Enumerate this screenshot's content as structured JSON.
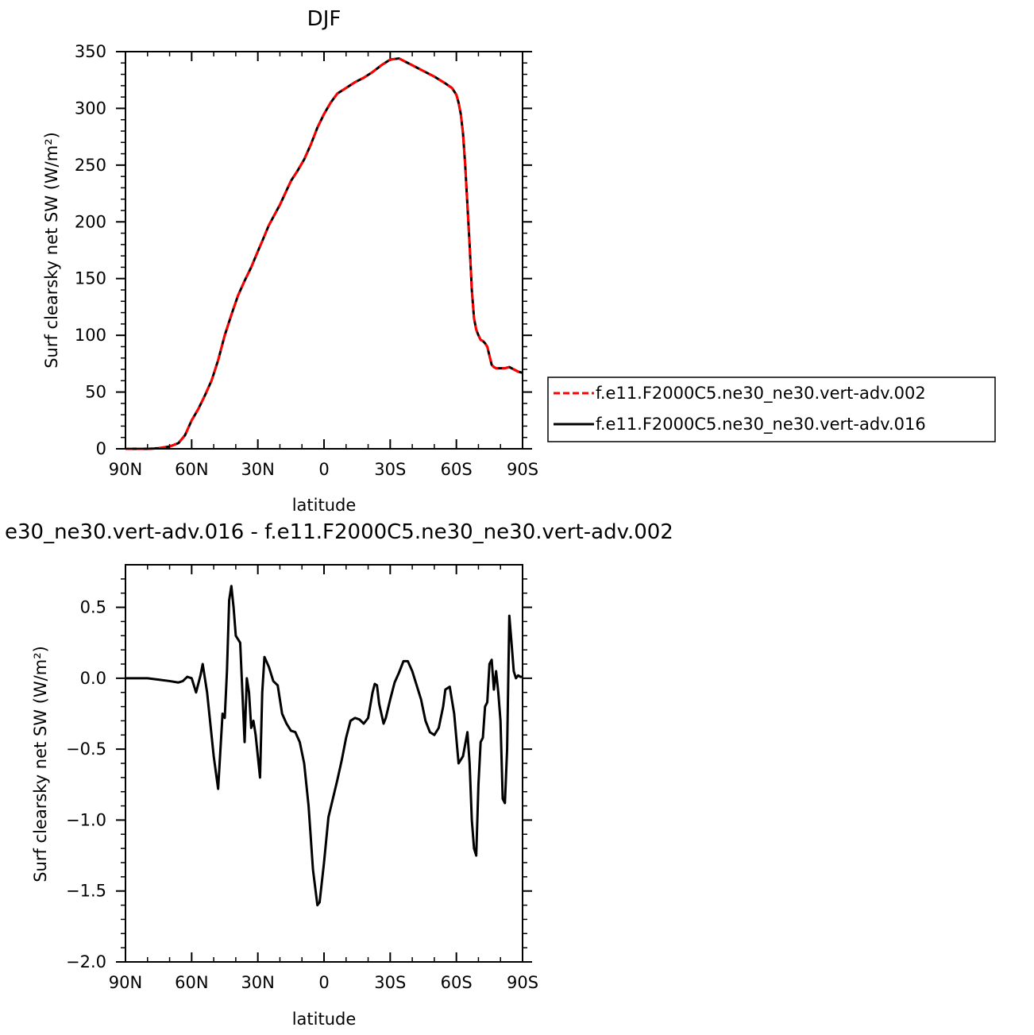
{
  "chart_data": [
    {
      "type": "line",
      "title": "DJF",
      "xlabel": "latitude",
      "ylabel": "Surf clearsky net SW (W/m²)",
      "xlim": [
        -90,
        90
      ],
      "ylim": [
        0,
        350
      ],
      "x_ticks": [
        {
          "value": -90,
          "label": "90N"
        },
        {
          "value": -60,
          "label": "60N"
        },
        {
          "value": -30,
          "label": "30N"
        },
        {
          "value": 0,
          "label": "0"
        },
        {
          "value": 30,
          "label": "30S"
        },
        {
          "value": 60,
          "label": "60S"
        },
        {
          "value": 90,
          "label": "90S"
        }
      ],
      "y_ticks": [
        0,
        50,
        100,
        150,
        200,
        250,
        300,
        350
      ],
      "legend_position": "right",
      "series": [
        {
          "name": "f.e11.F2000C5.ne30_ne30.vert-adv.002",
          "color": "#ff0000",
          "style": "dashed",
          "x": [
            -90,
            -85,
            -80,
            -75,
            -70,
            -66,
            -63,
            -60,
            -57,
            -54,
            -51,
            -48,
            -45,
            -42,
            -39,
            -36,
            -33,
            -30,
            -28,
            -25,
            -20,
            -15,
            -12,
            -9,
            -6,
            -3,
            0,
            3,
            6,
            10,
            14,
            18,
            22,
            26,
            30,
            34,
            37,
            40,
            45,
            50,
            55,
            58,
            60,
            61,
            62,
            63,
            64,
            65,
            66,
            67,
            68,
            69,
            70,
            71,
            72,
            73,
            74,
            75,
            76,
            77,
            78,
            80,
            82,
            84,
            86,
            88,
            90
          ],
          "values": [
            0,
            0,
            0,
            0.5,
            2,
            5,
            12,
            25,
            35,
            47,
            60,
            78,
            100,
            118,
            135,
            148,
            160,
            174,
            183,
            197,
            215,
            236,
            245,
            255,
            268,
            283,
            295,
            305,
            313,
            318,
            323,
            327,
            332,
            338,
            343,
            344,
            341,
            338,
            333,
            328,
            322,
            318,
            312,
            305,
            295,
            278,
            250,
            215,
            180,
            140,
            115,
            105,
            100,
            96,
            95,
            93,
            90,
            82,
            74,
            72,
            71,
            71,
            71,
            72,
            70,
            68,
            67
          ]
        },
        {
          "name": "f.e11.F2000C5.ne30_ne30.vert-adv.016",
          "color": "#000000",
          "style": "solid",
          "x": [
            -90,
            -85,
            -80,
            -75,
            -70,
            -66,
            -63,
            -60,
            -57,
            -54,
            -51,
            -48,
            -45,
            -42,
            -39,
            -36,
            -33,
            -30,
            -28,
            -25,
            -20,
            -15,
            -12,
            -9,
            -6,
            -3,
            0,
            3,
            6,
            10,
            14,
            18,
            22,
            26,
            30,
            34,
            37,
            40,
            45,
            50,
            55,
            58,
            60,
            61,
            62,
            63,
            64,
            65,
            66,
            67,
            68,
            69,
            70,
            71,
            72,
            73,
            74,
            75,
            76,
            77,
            78,
            80,
            82,
            84,
            86,
            88,
            90
          ],
          "values": [
            0,
            0,
            0,
            0.5,
            2,
            5,
            12,
            25,
            35,
            47,
            60,
            78,
            100,
            118,
            135,
            148,
            160,
            174,
            183,
            197,
            215,
            236,
            245,
            255,
            268,
            283,
            295,
            305,
            313,
            318,
            323,
            327,
            332,
            338,
            343,
            344,
            341,
            338,
            333,
            328,
            322,
            318,
            312,
            305,
            295,
            278,
            250,
            215,
            180,
            140,
            115,
            105,
            100,
            96,
            95,
            93,
            90,
            82,
            74,
            72,
            71,
            71,
            71,
            72,
            70,
            68,
            67
          ]
        }
      ]
    },
    {
      "type": "line",
      "title": "e30_ne30.vert-adv.016 - f.e11.F2000C5.ne30_ne30.vert-adv.002",
      "xlabel": "latitude",
      "ylabel": "Surf clearsky net SW (W/m²)",
      "xlim": [
        -90,
        90
      ],
      "ylim": [
        -2.0,
        0.8
      ],
      "x_ticks": [
        {
          "value": -90,
          "label": "90N"
        },
        {
          "value": -60,
          "label": "60N"
        },
        {
          "value": -30,
          "label": "30N"
        },
        {
          "value": 0,
          "label": "0"
        },
        {
          "value": 30,
          "label": "30S"
        },
        {
          "value": 60,
          "label": "60S"
        },
        {
          "value": 90,
          "label": "90S"
        }
      ],
      "y_ticks": [
        {
          "value": -2.0,
          "label": "−2.0"
        },
        {
          "value": -1.5,
          "label": "−1.5"
        },
        {
          "value": -1.0,
          "label": "−1.0"
        },
        {
          "value": -0.5,
          "label": "−0.5"
        },
        {
          "value": 0.0,
          "label": "0.0"
        },
        {
          "value": 0.5,
          "label": "0.5"
        }
      ],
      "series": [
        {
          "color": "#000000",
          "style": "solid",
          "x": [
            -90,
            -85,
            -80,
            -75,
            -70,
            -66,
            -64,
            -62,
            -60,
            -58,
            -56,
            -55,
            -53,
            -51,
            -50,
            -48,
            -46,
            -45,
            -44,
            -43,
            -42,
            -41,
            -40,
            -38,
            -37,
            -36,
            -35,
            -34,
            -33,
            -32,
            -31,
            -29,
            -28,
            -27,
            -25,
            -23,
            -21,
            -19,
            -17,
            -15,
            -13,
            -11,
            -9,
            -7,
            -5,
            -3,
            -2,
            0,
            2,
            4,
            6,
            8,
            10,
            12,
            14,
            16,
            18,
            20,
            22,
            23,
            24,
            25,
            27,
            28,
            30,
            32,
            34,
            36,
            38,
            40,
            42,
            44,
            46,
            48,
            50,
            52,
            54,
            55,
            57,
            59,
            61,
            63,
            65,
            66,
            67,
            68,
            69,
            70,
            71,
            72,
            73,
            74,
            75,
            76,
            77,
            78,
            79,
            80,
            81,
            82,
            83,
            84,
            85,
            86,
            87,
            88,
            89,
            90
          ],
          "values": [
            0,
            0,
            0,
            -0.01,
            -0.02,
            -0.03,
            -0.02,
            0.01,
            0,
            -0.1,
            0.02,
            0.1,
            -0.1,
            -0.4,
            -0.55,
            -0.78,
            -0.25,
            -0.28,
            0.05,
            0.55,
            0.65,
            0.5,
            0.3,
            0.25,
            -0.1,
            -0.45,
            0,
            -0.1,
            -0.35,
            -0.3,
            -0.4,
            -0.7,
            -0.1,
            0.15,
            0.08,
            -0.02,
            -0.05,
            -0.25,
            -0.32,
            -0.37,
            -0.38,
            -0.45,
            -0.6,
            -0.9,
            -1.35,
            -1.6,
            -1.58,
            -1.3,
            -0.98,
            -0.85,
            -0.72,
            -0.58,
            -0.42,
            -0.3,
            -0.28,
            -0.29,
            -0.32,
            -0.28,
            -0.1,
            -0.04,
            -0.05,
            -0.18,
            -0.32,
            -0.28,
            -0.15,
            -0.03,
            0.04,
            0.12,
            0.12,
            0.05,
            -0.05,
            -0.15,
            -0.3,
            -0.38,
            -0.4,
            -0.35,
            -0.2,
            -0.08,
            -0.06,
            -0.25,
            -0.6,
            -0.55,
            -0.38,
            -0.6,
            -1.0,
            -1.2,
            -1.25,
            -0.75,
            -0.45,
            -0.42,
            -0.2,
            -0.17,
            0.1,
            0.13,
            -0.08,
            0.05,
            -0.1,
            -0.3,
            -0.85,
            -0.88,
            -0.5,
            0.44,
            0.25,
            0.05,
            0,
            0.02,
            0.01,
            0.01
          ]
        }
      ]
    }
  ]
}
